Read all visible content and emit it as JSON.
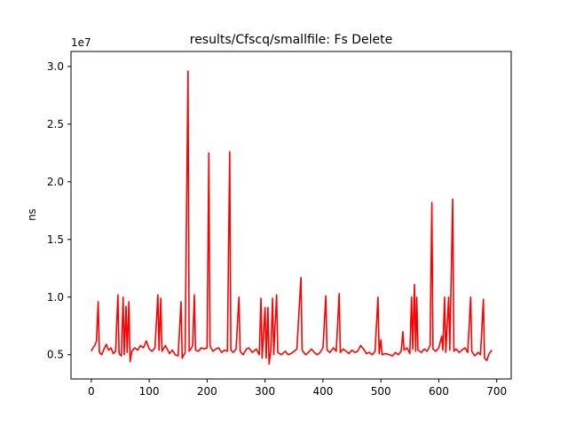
{
  "chart_data": {
    "type": "line",
    "title": "results/Cfscq/smallfile: Fs Delete",
    "xlabel": "",
    "ylabel": "ns",
    "y_offset_label": "1e7",
    "xlim": [
      -35,
      725
    ],
    "ylim": [
      2.9,
      31.3
    ],
    "y_multiplier": 10000000,
    "xticks": [
      0,
      100,
      200,
      300,
      400,
      500,
      600,
      700
    ],
    "yticks": [
      0.5,
      1.0,
      1.5,
      2.0,
      2.5,
      3.0
    ],
    "ytick_labels": [
      "0.5",
      "1.0",
      "1.5",
      "2.0",
      "2.5",
      "3.0"
    ],
    "grid": false,
    "line_color": "#ff0000",
    "series": [
      {
        "baseline": 5.3,
        "x_start": 0,
        "x_end": 692,
        "points": [
          [
            0,
            5.3
          ],
          [
            3,
            5.6
          ],
          [
            6,
            5.8
          ],
          [
            9,
            6.2
          ],
          [
            12,
            9.6
          ],
          [
            14,
            5.2
          ],
          [
            18,
            5.0
          ],
          [
            22,
            5.5
          ],
          [
            26,
            5.9
          ],
          [
            30,
            5.4
          ],
          [
            34,
            5.6
          ],
          [
            38,
            5.1
          ],
          [
            42,
            5.3
          ],
          [
            46,
            10.2
          ],
          [
            48,
            5.1
          ],
          [
            52,
            4.9
          ],
          [
            55,
            10.0
          ],
          [
            57,
            5.0
          ],
          [
            60,
            9.2
          ],
          [
            62,
            5.2
          ],
          [
            65,
            9.6
          ],
          [
            67,
            4.4
          ],
          [
            70,
            5.3
          ],
          [
            75,
            5.6
          ],
          [
            80,
            5.4
          ],
          [
            85,
            5.8
          ],
          [
            90,
            5.6
          ],
          [
            95,
            6.2
          ],
          [
            100,
            5.5
          ],
          [
            105,
            5.3
          ],
          [
            110,
            5.6
          ],
          [
            115,
            10.2
          ],
          [
            117,
            5.4
          ],
          [
            120,
            9.9
          ],
          [
            122,
            5.3
          ],
          [
            128,
            5.8
          ],
          [
            135,
            5.1
          ],
          [
            140,
            5.4
          ],
          [
            145,
            5.0
          ],
          [
            150,
            4.9
          ],
          [
            155,
            9.6
          ],
          [
            157,
            4.7
          ],
          [
            162,
            5.2
          ],
          [
            167,
            29.6
          ],
          [
            169,
            5.3
          ],
          [
            172,
            5.5
          ],
          [
            175,
            5.8
          ],
          [
            178,
            10.2
          ],
          [
            180,
            5.4
          ],
          [
            185,
            5.3
          ],
          [
            190,
            5.6
          ],
          [
            195,
            5.5
          ],
          [
            200,
            5.6
          ],
          [
            203,
            22.5
          ],
          [
            205,
            5.8
          ],
          [
            210,
            5.3
          ],
          [
            215,
            5.5
          ],
          [
            220,
            5.6
          ],
          [
            225,
            5.2
          ],
          [
            230,
            5.4
          ],
          [
            235,
            5.3
          ],
          [
            239,
            22.6
          ],
          [
            241,
            5.4
          ],
          [
            245,
            5.2
          ],
          [
            250,
            5.5
          ],
          [
            255,
            10.0
          ],
          [
            257,
            5.3
          ],
          [
            262,
            5.0
          ],
          [
            268,
            5.5
          ],
          [
            272,
            5.6
          ],
          [
            278,
            5.2
          ],
          [
            285,
            5.5
          ],
          [
            290,
            5.0
          ],
          [
            293,
            9.9
          ],
          [
            295,
            4.7
          ],
          [
            300,
            9.1
          ],
          [
            302,
            4.7
          ],
          [
            305,
            9.1
          ],
          [
            307,
            4.2
          ],
          [
            310,
            5.4
          ],
          [
            313,
            9.9
          ],
          [
            315,
            5.0
          ],
          [
            320,
            10.2
          ],
          [
            322,
            5.2
          ],
          [
            328,
            5.0
          ],
          [
            335,
            5.3
          ],
          [
            340,
            5.0
          ],
          [
            345,
            5.1
          ],
          [
            350,
            5.3
          ],
          [
            355,
            5.5
          ],
          [
            362,
            11.7
          ],
          [
            364,
            5.4
          ],
          [
            370,
            5.0
          ],
          [
            375,
            5.2
          ],
          [
            380,
            5.5
          ],
          [
            385,
            5.2
          ],
          [
            390,
            5.0
          ],
          [
            395,
            5.2
          ],
          [
            400,
            5.6
          ],
          [
            405,
            10.1
          ],
          [
            407,
            5.4
          ],
          [
            412,
            5.2
          ],
          [
            418,
            5.6
          ],
          [
            423,
            5.3
          ],
          [
            428,
            10.3
          ],
          [
            430,
            5.2
          ],
          [
            435,
            5.5
          ],
          [
            440,
            5.3
          ],
          [
            445,
            5.1
          ],
          [
            450,
            5.4
          ],
          [
            455,
            5.2
          ],
          [
            460,
            5.3
          ],
          [
            465,
            5.8
          ],
          [
            470,
            5.5
          ],
          [
            475,
            5.1
          ],
          [
            480,
            5.2
          ],
          [
            485,
            5.0
          ],
          [
            490,
            5.3
          ],
          [
            495,
            10.0
          ],
          [
            497,
            5.1
          ],
          [
            500,
            6.3
          ],
          [
            502,
            5.0
          ],
          [
            508,
            5.1
          ],
          [
            515,
            5.0
          ],
          [
            520,
            4.9
          ],
          [
            525,
            5.2
          ],
          [
            530,
            5.0
          ],
          [
            535,
            5.3
          ],
          [
            538,
            7.0
          ],
          [
            540,
            5.4
          ],
          [
            545,
            5.6
          ],
          [
            550,
            5.1
          ],
          [
            553,
            10.0
          ],
          [
            555,
            5.5
          ],
          [
            558,
            11.1
          ],
          [
            560,
            5.3
          ],
          [
            562,
            10.0
          ],
          [
            564,
            5.4
          ],
          [
            570,
            5.2
          ],
          [
            575,
            5.5
          ],
          [
            580,
            5.3
          ],
          [
            585,
            5.8
          ],
          [
            588,
            18.2
          ],
          [
            590,
            5.5
          ],
          [
            595,
            5.3
          ],
          [
            600,
            5.6
          ],
          [
            605,
            6.6
          ],
          [
            607,
            5.4
          ],
          [
            610,
            10.0
          ],
          [
            612,
            5.2
          ],
          [
            617,
            10.0
          ],
          [
            619,
            5.4
          ],
          [
            624,
            18.5
          ],
          [
            626,
            5.3
          ],
          [
            630,
            5.5
          ],
          [
            635,
            5.2
          ],
          [
            640,
            5.4
          ],
          [
            645,
            5.6
          ],
          [
            650,
            5.2
          ],
          [
            655,
            10.0
          ],
          [
            657,
            5.3
          ],
          [
            662,
            4.9
          ],
          [
            668,
            5.2
          ],
          [
            672,
            5.0
          ],
          [
            677,
            9.8
          ],
          [
            679,
            4.7
          ],
          [
            683,
            4.5
          ],
          [
            686,
            5.0
          ],
          [
            690,
            5.3
          ],
          [
            692,
            5.4
          ]
        ]
      }
    ]
  }
}
